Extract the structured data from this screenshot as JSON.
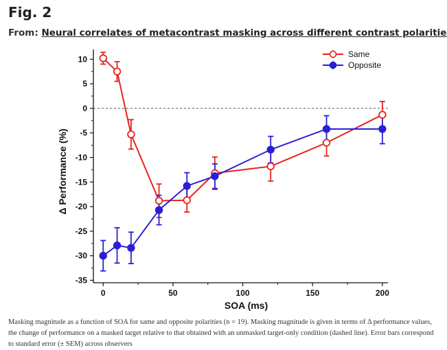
{
  "figure": {
    "label": "Fig. 2",
    "from_prefix": "From:",
    "from_link": "Neural correlates of metacontrast masking across different contrast polarities",
    "caption": "Masking magnitude as a function of SOA for same and opposite polarities (n = 19). Masking magnitude is given in terms of Δ performance values, the change of performance on a masked target relative to that obtained with an unmasked target-only condition (dashed line). Error bars correspond to standard error (± SEM) across observers"
  },
  "chart_data": {
    "type": "line",
    "title": "",
    "xlabel": "SOA (ms)",
    "ylabel": "Δ Performance (%)",
    "xlim": [
      -7,
      204
    ],
    "ylim": [
      -35.5,
      12
    ],
    "xticks": [
      0,
      50,
      100,
      150,
      200
    ],
    "yticks": [
      10,
      5,
      0,
      -5,
      -10,
      -15,
      -20,
      -25,
      -30,
      -35
    ],
    "reference_line": 0,
    "legend_position": "top-right",
    "series": [
      {
        "name": "Same",
        "color": "#e8231c",
        "marker": "open-circle",
        "x": [
          0,
          10,
          20,
          40,
          60,
          80,
          120,
          160,
          200
        ],
        "y": [
          10.2,
          7.5,
          -5.3,
          -18.8,
          -18.7,
          -13.2,
          -11.8,
          -7.0,
          -1.3
        ],
        "err": [
          1.2,
          2.0,
          3.0,
          3.4,
          2.4,
          3.3,
          3.0,
          2.7,
          2.7
        ]
      },
      {
        "name": "Opposite",
        "color": "#2b1fd6",
        "marker": "filled-circle",
        "x": [
          0,
          10,
          20,
          40,
          60,
          80,
          120,
          160,
          200
        ],
        "y": [
          -30.0,
          -27.9,
          -28.4,
          -20.7,
          -15.8,
          -13.8,
          -8.4,
          -4.2,
          -4.2
        ],
        "err": [
          3.1,
          3.6,
          3.2,
          3.0,
          2.7,
          2.5,
          2.7,
          2.7,
          3.0
        ]
      }
    ]
  }
}
